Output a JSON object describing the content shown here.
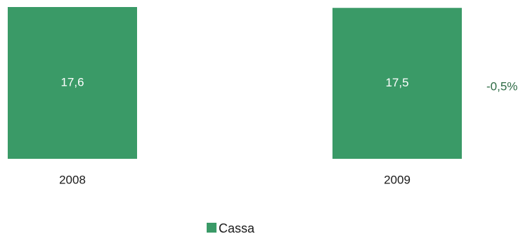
{
  "chart_data": {
    "type": "bar",
    "categories": [
      "2008",
      "2009"
    ],
    "series": [
      {
        "name": "Cassa",
        "values": [
          17.6,
          17.5
        ],
        "value_labels": [
          "17,6",
          "17,5"
        ],
        "color": "#3a9a67"
      }
    ],
    "annotations": [
      {
        "text": "-0,5%",
        "color": "#2e6b45"
      }
    ],
    "title": "",
    "xlabel": "",
    "ylabel": "",
    "ylim": [
      0,
      17.6
    ],
    "grid": false,
    "legend_placement": "bottom-center"
  }
}
